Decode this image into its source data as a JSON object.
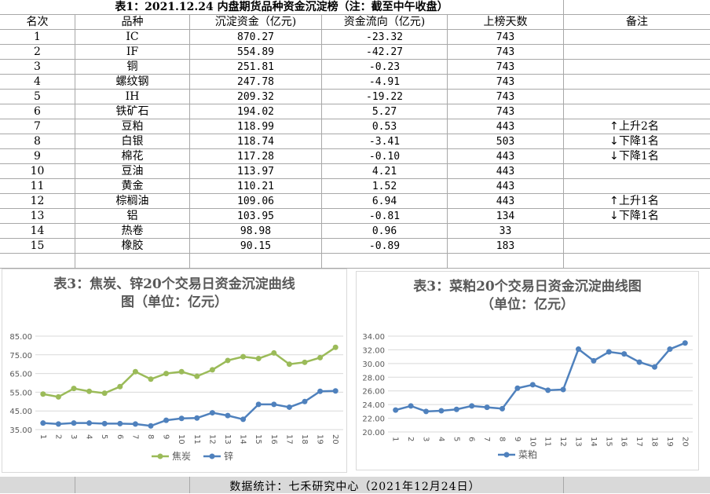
{
  "table": {
    "title": "表1：2021.12.24 内盘期货品种资金沉淀榜（注：截至中午收盘）",
    "headers": [
      "名次",
      "品种",
      "沉淀资金（亿元)",
      "资金流向（亿元)",
      "上榜天数",
      "备注"
    ],
    "rows": [
      {
        "rank": "1",
        "name": "IC",
        "fund": "870.27",
        "flow": "-23.32",
        "days": "743",
        "arrow": "",
        "note": ""
      },
      {
        "rank": "2",
        "name": "IF",
        "fund": "554.89",
        "flow": "-42.27",
        "days": "743",
        "arrow": "",
        "note": ""
      },
      {
        "rank": "3",
        "name": "铜",
        "fund": "251.81",
        "flow": "-0.23",
        "days": "743",
        "arrow": "",
        "note": ""
      },
      {
        "rank": "4",
        "name": "螺纹钢",
        "fund": "247.78",
        "flow": "-4.91",
        "days": "743",
        "arrow": "",
        "note": ""
      },
      {
        "rank": "5",
        "name": "IH",
        "fund": "209.32",
        "flow": "-19.22",
        "days": "743",
        "arrow": "",
        "note": ""
      },
      {
        "rank": "6",
        "name": "铁矿石",
        "fund": "194.02",
        "flow": "5.27",
        "days": "743",
        "arrow": "",
        "note": ""
      },
      {
        "rank": "7",
        "name": "豆粕",
        "fund": "118.99",
        "flow": "0.53",
        "days": "443",
        "arrow": "↑",
        "note": "上升2名"
      },
      {
        "rank": "8",
        "name": "白银",
        "fund": "118.74",
        "flow": "-3.41",
        "days": "503",
        "arrow": "↓",
        "note": "下降1名"
      },
      {
        "rank": "9",
        "name": "棉花",
        "fund": "117.28",
        "flow": "-0.10",
        "days": "443",
        "arrow": "↓",
        "note": "下降1名"
      },
      {
        "rank": "10",
        "name": "豆油",
        "fund": "113.97",
        "flow": "4.21",
        "days": "443",
        "arrow": "",
        "note": ""
      },
      {
        "rank": "11",
        "name": "黄金",
        "fund": "110.21",
        "flow": "1.52",
        "days": "443",
        "arrow": "",
        "note": ""
      },
      {
        "rank": "12",
        "name": "棕榈油",
        "fund": "109.06",
        "flow": "6.94",
        "days": "443",
        "arrow": "↑",
        "note": "上升1名"
      },
      {
        "rank": "13",
        "name": "铝",
        "fund": "103.95",
        "flow": "-0.81",
        "days": "134",
        "arrow": "↓",
        "note": "下降1名"
      },
      {
        "rank": "14",
        "name": "热卷",
        "fund": "98.98",
        "flow": "0.96",
        "days": "33",
        "arrow": "",
        "note": ""
      },
      {
        "rank": "15",
        "name": "橡胶",
        "fund": "90.15",
        "flow": "-0.89",
        "days": "183",
        "arrow": "",
        "note": ""
      }
    ]
  },
  "footer": {
    "text": "数据统计：七禾研究中心（2021年12月24日）"
  },
  "colors": {
    "green": "#9bbb59",
    "blue": "#4f81bd",
    "grid": "#d9d9d9",
    "footer_bg": "#d9d9d9"
  },
  "chart_data": [
    {
      "type": "line",
      "title": "表3：焦炭、锌20个交易日资金沉淀曲线\n图（单位：亿元）",
      "categories": [
        "1",
        "2",
        "3",
        "4",
        "5",
        "6",
        "7",
        "8",
        "9",
        "10",
        "11",
        "12",
        "13",
        "14",
        "15",
        "16",
        "17",
        "18",
        "19",
        "20"
      ],
      "ylim": [
        35,
        85
      ],
      "yticks": [
        "35.00",
        "45.00",
        "55.00",
        "65.00",
        "75.00",
        "85.00"
      ],
      "grid": true,
      "legend": "bottom",
      "series": [
        {
          "name": "焦炭",
          "color": "#9bbb59",
          "values": [
            54,
            52.5,
            57,
            55.5,
            54.5,
            58,
            66,
            62,
            65,
            66,
            63.5,
            67,
            72,
            74,
            73,
            76,
            70,
            71,
            73.5,
            79
          ]
        },
        {
          "name": "锌",
          "color": "#4f81bd",
          "values": [
            38.5,
            38,
            38.5,
            38.5,
            38.2,
            38.2,
            38,
            37,
            40,
            41,
            41.2,
            44,
            42.5,
            40.5,
            48.5,
            48.5,
            47,
            50,
            55.5,
            55.7
          ]
        }
      ]
    },
    {
      "type": "line",
      "title": "表3：菜粕20个交易日资金沉淀曲线图\n（单位：亿元）",
      "categories": [
        "1",
        "2",
        "3",
        "4",
        "5",
        "6",
        "7",
        "8",
        "9",
        "10",
        "11",
        "12",
        "13",
        "14",
        "15",
        "16",
        "17",
        "18",
        "19",
        "20"
      ],
      "ylim": [
        20,
        34
      ],
      "yticks": [
        "20.00",
        "22.00",
        "24.00",
        "26.00",
        "28.00",
        "30.00",
        "32.00",
        "34.00"
      ],
      "grid": true,
      "legend": "bottom",
      "series": [
        {
          "name": "菜粕",
          "color": "#4f81bd",
          "values": [
            23.2,
            23.8,
            23.0,
            23.1,
            23.3,
            23.8,
            23.6,
            23.4,
            26.4,
            26.9,
            26.1,
            26.2,
            32.1,
            30.4,
            31.7,
            31.4,
            30.2,
            29.5,
            32.1,
            33.0
          ]
        }
      ]
    }
  ]
}
